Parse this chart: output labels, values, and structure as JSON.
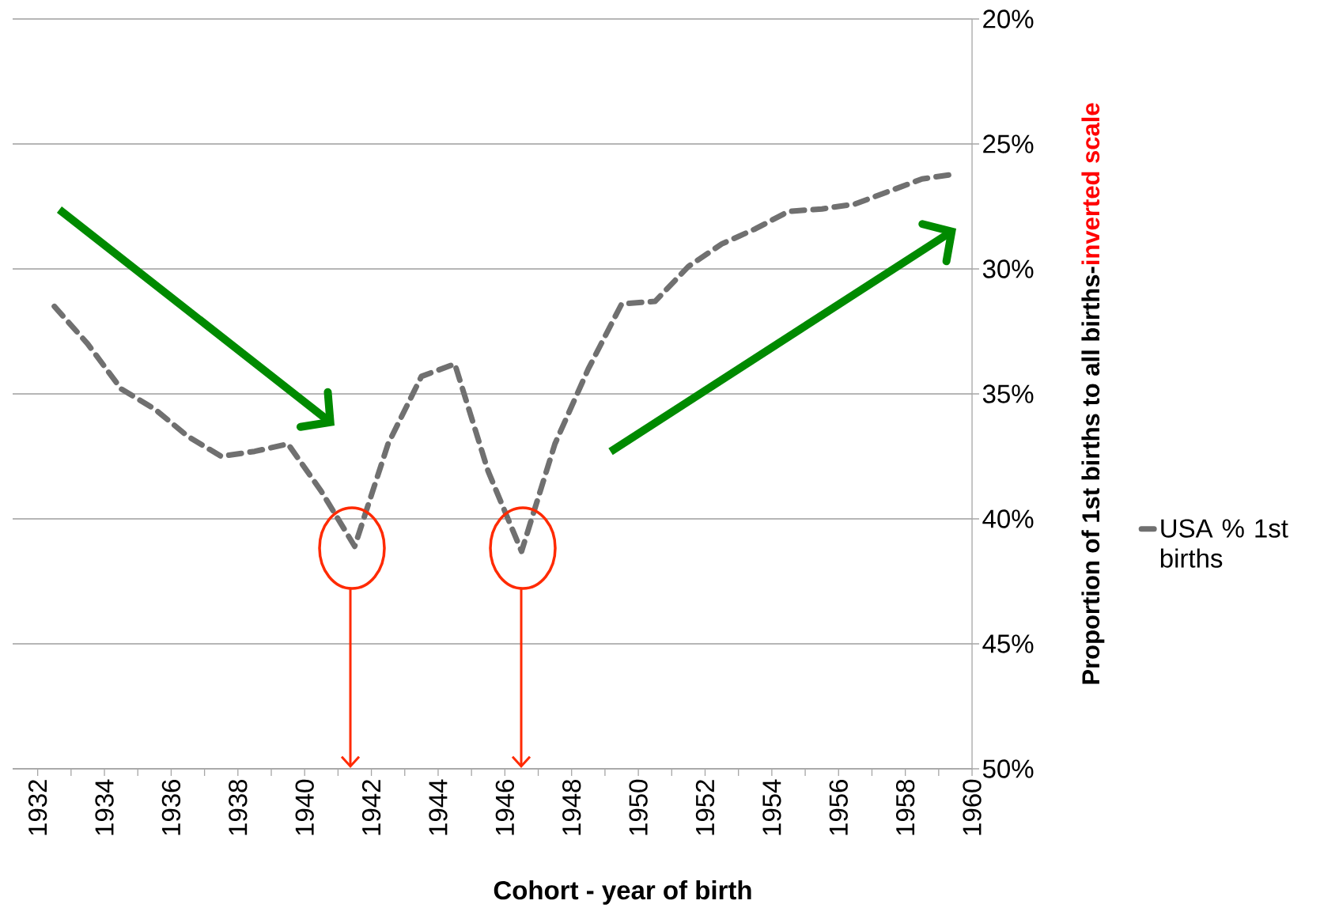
{
  "chart_data": {
    "type": "line",
    "xlabel": "Cohort - year of birth",
    "ylabel": "Proportion of 1st births to all births-",
    "annotations": [
      "inverted scale"
    ],
    "x": [
      1932.5,
      1933.5,
      1934.5,
      1935.5,
      1936.5,
      1937.5,
      1938.5,
      1939.5,
      1940.5,
      1941.5,
      1942.5,
      1943.5,
      1944.5,
      1945.5,
      1946.5,
      1947.5,
      1948.5,
      1949.5,
      1950.5,
      1951.5,
      1952.5,
      1953.5,
      1954.5,
      1955.5,
      1956.5,
      1957.5,
      1958.5,
      1959.5
    ],
    "series": [
      {
        "name": "USA % 1st births",
        "color": "#707070",
        "values": [
          31.5,
          33.0,
          34.8,
          35.6,
          36.7,
          37.5,
          37.3,
          37.0,
          38.9,
          41.1,
          37.0,
          34.3,
          33.8,
          38.1,
          41.3,
          37.0,
          34.0,
          31.4,
          31.3,
          29.9,
          29.0,
          28.4,
          27.7,
          27.6,
          27.4,
          26.9,
          26.4,
          26.2
        ]
      }
    ],
    "xlim": [
      1931.25,
      1960
    ],
    "xticks": [
      1932,
      {
        "value": 1933,
        "label": null
      },
      1934,
      {
        "value": 1935,
        "label": null
      },
      1936,
      {
        "value": 1937,
        "label": null
      },
      1938,
      {
        "value": 1939,
        "label": null
      },
      1940,
      {
        "value": 1941,
        "label": null
      },
      1942,
      {
        "value": 1943,
        "label": null
      },
      1944,
      {
        "value": 1945,
        "label": null
      },
      1946,
      {
        "value": 1947,
        "label": null
      },
      1948,
      {
        "value": 1949,
        "label": null
      },
      1950,
      {
        "value": 1951,
        "label": null
      },
      1952,
      {
        "value": 1953,
        "label": null
      },
      1954,
      {
        "value": 1955,
        "label": null
      },
      1956,
      {
        "value": 1957,
        "label": null
      },
      1958,
      {
        "value": 1959,
        "label": null
      },
      1960
    ],
    "ylim": [
      50,
      20
    ],
    "yticks": [
      {
        "value": 20,
        "label": "20%"
      },
      {
        "value": 25,
        "label": "25%"
      },
      {
        "value": 30,
        "label": "30%"
      },
      {
        "value": 35,
        "label": "35%"
      },
      {
        "value": 40,
        "label": "40%"
      },
      {
        "value": 45,
        "label": "45%"
      },
      {
        "value": 50,
        "label": "50%"
      }
    ],
    "grid": "y",
    "legend": "right",
    "line_style": "dashed"
  }
}
